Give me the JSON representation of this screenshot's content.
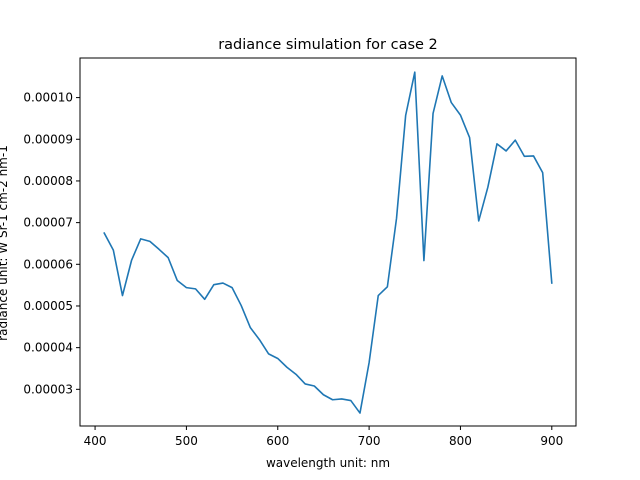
{
  "chart_data": {
    "type": "line",
    "title": "radiance simulation for case 2",
    "xlabel": "wavelength unit: nm",
    "ylabel": "radiance unit: W Sr-1 cm-2 nm-1",
    "xlim": [
      383.5,
      926.5
    ],
    "ylim": [
      2.12e-05,
      0.0001095
    ],
    "x_ticks": [
      400,
      500,
      600,
      700,
      800,
      900
    ],
    "x_tick_labels": [
      "400",
      "500",
      "600",
      "700",
      "800",
      "900"
    ],
    "y_ticks": [
      3e-05,
      4e-05,
      5e-05,
      6e-05,
      7e-05,
      8e-05,
      9e-05,
      0.0001
    ],
    "y_tick_labels": [
      "0.00003",
      "0.00004",
      "0.00005",
      "0.00006",
      "0.00007",
      "0.00008",
      "0.00009",
      "0.00010"
    ],
    "grid": false,
    "line_color": "#1f77b4",
    "series": [
      {
        "x": [
          410,
          420,
          430,
          440,
          450,
          460,
          470,
          480,
          490,
          500,
          510,
          520,
          530,
          540,
          550,
          560,
          570,
          580,
          590,
          600,
          610,
          620,
          630,
          640,
          650,
          660,
          670,
          680,
          690,
          700,
          710,
          720,
          730,
          740,
          750,
          760,
          770,
          780,
          790,
          800,
          810,
          820,
          830,
          840,
          850,
          860,
          870,
          880,
          890,
          900
        ],
        "values": [
          6.75e-05,
          6.34e-05,
          5.25e-05,
          6.1e-05,
          6.61e-05,
          6.55e-05,
          6.36e-05,
          6.16e-05,
          5.61e-05,
          5.44e-05,
          5.41e-05,
          5.16e-05,
          5.51e-05,
          5.55e-05,
          5.44e-05,
          5.01e-05,
          4.48e-05,
          4.19e-05,
          3.85e-05,
          3.74e-05,
          3.53e-05,
          3.36e-05,
          3.13e-05,
          3.08e-05,
          2.87e-05,
          2.75e-05,
          2.77e-05,
          2.73e-05,
          2.43e-05,
          3.64e-05,
          5.25e-05,
          5.46e-05,
          7.1e-05,
          9.57e-05,
          0.0001061,
          6.09e-05,
          9.62e-05,
          0.0001052,
          9.88e-05,
          9.58e-05,
          9.04e-05,
          7.04e-05,
          7.85e-05,
          8.89e-05,
          8.72e-05,
          8.98e-05,
          8.59e-05,
          8.6e-05,
          8.2e-05,
          5.55e-05
        ]
      }
    ]
  }
}
